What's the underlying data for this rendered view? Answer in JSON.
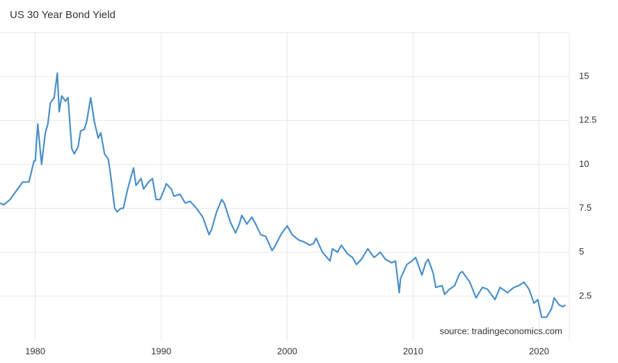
{
  "chart_data": {
    "type": "line",
    "title": "US 30 Year Bond Yield",
    "source": "source: tradingeconomics.com",
    "xlim": [
      1977.2,
      2022.4
    ],
    "xticks": [
      1980,
      1990,
      2000,
      2010,
      2020
    ],
    "ylim": [
      0,
      17.5
    ],
    "yticks": [
      2.5,
      5,
      7.5,
      10,
      12.5,
      15
    ],
    "grid": true,
    "series": [
      {
        "name": "US 30 Year Bond Yield",
        "color": "#4a8fc9",
        "x": [
          1977.2,
          1977.5,
          1978.0,
          1978.5,
          1979.0,
          1979.5,
          1979.9,
          1980.0,
          1980.2,
          1980.5,
          1980.8,
          1981.0,
          1981.2,
          1981.5,
          1981.75,
          1981.9,
          1982.1,
          1982.4,
          1982.6,
          1982.9,
          1983.1,
          1983.4,
          1983.6,
          1983.9,
          1984.1,
          1984.4,
          1984.7,
          1985.0,
          1985.2,
          1985.5,
          1985.8,
          1986.0,
          1986.3,
          1986.5,
          1986.8,
          1987.0,
          1987.3,
          1987.8,
          1988.0,
          1988.4,
          1988.6,
          1989.0,
          1989.3,
          1989.6,
          1989.9,
          1990.2,
          1990.4,
          1990.8,
          1991.0,
          1991.5,
          1991.9,
          1992.3,
          1992.8,
          1993.3,
          1993.8,
          1994.0,
          1994.4,
          1994.8,
          1995.0,
          1995.5,
          1995.9,
          1996.2,
          1996.4,
          1996.8,
          1997.2,
          1997.5,
          1997.9,
          1998.3,
          1998.8,
          1999.0,
          1999.5,
          2000.0,
          2000.4,
          2000.9,
          2001.3,
          2001.8,
          2002.1,
          2002.3,
          2002.8,
          2003.4,
          2003.6,
          2004.0,
          2004.3,
          2004.8,
          2005.2,
          2005.5,
          2005.9,
          2006.4,
          2006.9,
          2007.4,
          2007.8,
          2008.3,
          2008.6,
          2008.9,
          2009.0,
          2009.5,
          2009.9,
          2010.2,
          2010.7,
          2011.0,
          2011.2,
          2011.6,
          2011.8,
          2012.3,
          2012.5,
          2012.9,
          2013.3,
          2013.7,
          2013.9,
          2014.5,
          2015.0,
          2015.5,
          2015.9,
          2016.5,
          2016.9,
          2017.5,
          2018.0,
          2018.4,
          2018.8,
          2019.2,
          2019.6,
          2019.9,
          2020.2,
          2020.6,
          2021.0,
          2021.2,
          2021.6,
          2021.9,
          2022.1
        ],
        "values": [
          7.8,
          7.7,
          8.0,
          8.5,
          9.0,
          9.0,
          10.2,
          10.2,
          12.3,
          10.0,
          11.8,
          12.3,
          13.5,
          13.8,
          15.2,
          13.0,
          13.9,
          13.6,
          13.8,
          10.9,
          10.6,
          11.0,
          11.9,
          12.0,
          12.5,
          13.8,
          12.4,
          11.5,
          11.8,
          10.6,
          10.3,
          9.3,
          7.5,
          7.3,
          7.5,
          7.5,
          8.5,
          9.8,
          8.8,
          9.2,
          8.6,
          9.0,
          9.2,
          8.0,
          8.0,
          8.5,
          8.9,
          8.6,
          8.2,
          8.3,
          7.8,
          7.9,
          7.5,
          7.0,
          6.0,
          6.3,
          7.3,
          8.0,
          7.8,
          6.7,
          6.1,
          6.6,
          7.1,
          6.6,
          7.0,
          6.6,
          6.0,
          5.9,
          5.1,
          5.3,
          6.0,
          6.5,
          6.0,
          5.7,
          5.6,
          5.4,
          5.5,
          5.8,
          5.0,
          4.5,
          5.2,
          5.0,
          5.4,
          4.9,
          4.7,
          4.3,
          4.6,
          5.2,
          4.7,
          5.0,
          4.6,
          4.4,
          4.5,
          2.7,
          3.5,
          4.3,
          4.5,
          4.7,
          3.7,
          4.4,
          4.6,
          3.8,
          3.0,
          3.1,
          2.6,
          2.9,
          3.1,
          3.8,
          3.9,
          3.3,
          2.4,
          3.0,
          2.9,
          2.3,
          3.0,
          2.7,
          3.0,
          3.1,
          3.3,
          2.9,
          2.1,
          2.3,
          1.3,
          1.3,
          1.8,
          2.4,
          2.0,
          1.9,
          2.0
        ]
      }
    ]
  }
}
